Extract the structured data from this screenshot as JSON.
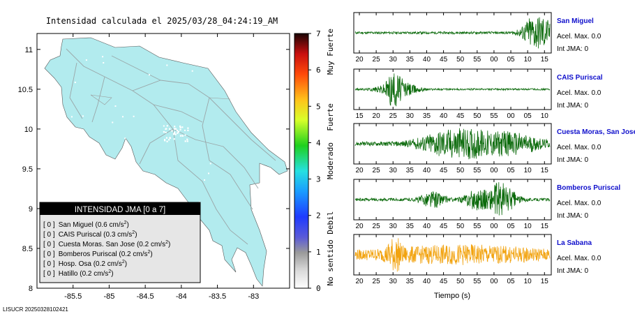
{
  "header": {
    "title": "Intensidad calculada el 2025/03/28_04:24:19_AM"
  },
  "footer": {
    "id": "LISUCR 20250328102421"
  },
  "map": {
    "xlim": [
      -86,
      -82.5
    ],
    "ylim": [
      8,
      11.2
    ],
    "xticks": [
      "-85.5",
      "-85",
      "-84.5",
      "-84",
      "-83.5",
      "-83"
    ],
    "xtick_values": [
      -85.5,
      -85,
      -84.5,
      -84,
      -83.5,
      -83
    ],
    "yticks": [
      "11",
      "10.5",
      "10",
      "9.5",
      "9",
      "8.5",
      "8"
    ],
    "ytick_values": [
      11,
      10.5,
      10,
      9.5,
      9,
      8.5,
      8
    ],
    "land_color": "#b2ebee"
  },
  "legend": {
    "title": "INTENSIDAD JMA [0 a 7]",
    "items": [
      {
        "value": "[ 0 ]",
        "label": "San Miguel (0.6 cm/s",
        "sup": "2",
        "end": ")"
      },
      {
        "value": "[ 0 ]",
        "label": "CAIS Puriscal (0.3 cm/s",
        "sup": "2",
        "end": ")"
      },
      {
        "value": "[ 0 ]",
        "label": "Cuesta Moras. San Jose (0.2 cm/s",
        "sup": "2",
        "end": ")"
      },
      {
        "value": "[ 0 ]",
        "label": "Bomberos Puriscal (0.2 cm/s",
        "sup": "2",
        "end": ")"
      },
      {
        "value": "[ 0 ]",
        "label": "Hosp. Osa (0.2 cm/s",
        "sup": "2",
        "end": ")"
      },
      {
        "value": "[ 0 ]",
        "label": "Hatillo (0.2 cm/s",
        "sup": "2",
        "end": ")"
      }
    ]
  },
  "colorbar": {
    "ticks": [
      "7",
      "6",
      "5",
      "4",
      "3",
      "2",
      "1",
      "0"
    ],
    "tick_values": [
      7,
      6,
      5,
      4,
      3,
      2,
      1,
      0
    ],
    "categories": [
      {
        "label": "Muy Fuerte",
        "center": 6.5
      },
      {
        "label": "Fuerte",
        "center": 4.7
      },
      {
        "label": "Moderado",
        "center": 3.5
      },
      {
        "label": "Debil",
        "center": 1.8
      },
      {
        "label": "No sentido",
        "center": 0.7
      }
    ]
  },
  "waveforms": {
    "xlabel": "Tiempo (s)",
    "trace_color": "#0b6a0b",
    "highlight_color": "#f2a30f",
    "stations": [
      {
        "name": "San Miguel",
        "acel": "Acel. Max. 0.0",
        "int": "Int JMA: 0",
        "ticks": [
          "20",
          "25",
          "30",
          "35",
          "40",
          "45",
          "50",
          "55",
          "00",
          "05",
          "10",
          "15"
        ],
        "first_tick": 20,
        "highlight": false,
        "bursts": [
          {
            "t": 0.92,
            "w": 0.06,
            "a": 0.95
          },
          {
            "t": 0.97,
            "w": 0.04,
            "a": 0.55
          }
        ],
        "noise": 0.07
      },
      {
        "name": "CAIS Puriscal",
        "acel": "Acel. Max. 0.0",
        "int": "Int JMA: 0",
        "ticks": [
          "15",
          "20",
          "25",
          "30",
          "35",
          "40",
          "45",
          "50",
          "55",
          "00",
          "05",
          "10"
        ],
        "first_tick": 15,
        "highlight": false,
        "bursts": [
          {
            "t": 0.22,
            "w": 0.09,
            "a": 0.5
          },
          {
            "t": 0.2,
            "w": 0.03,
            "a": 0.95
          }
        ],
        "noise": 0.05
      },
      {
        "name": "Cuesta Moras, San Jose",
        "acel": "Acel. Max. 0.0",
        "int": "Int JMA: 0",
        "ticks": [
          "20",
          "25",
          "30",
          "35",
          "40",
          "45",
          "50",
          "55",
          "00",
          "05",
          "10",
          "15"
        ],
        "first_tick": 20,
        "highlight": false,
        "bursts": [
          {
            "t": 0.42,
            "w": 0.12,
            "a": 0.35
          },
          {
            "t": 0.58,
            "w": 0.16,
            "a": 0.7
          },
          {
            "t": 0.82,
            "w": 0.14,
            "a": 0.5
          }
        ],
        "noise": 0.12
      },
      {
        "name": "Bomberos Puriscal",
        "acel": "Acel. Max. 0.0",
        "int": "Int JMA: 0",
        "ticks": [
          "20",
          "25",
          "30",
          "35",
          "40",
          "45",
          "50",
          "55",
          "00",
          "05",
          "10",
          "15"
        ],
        "first_tick": 20,
        "highlight": false,
        "bursts": [
          {
            "t": 0.4,
            "w": 0.06,
            "a": 0.45
          },
          {
            "t": 0.62,
            "w": 0.06,
            "a": 0.5
          },
          {
            "t": 0.75,
            "w": 0.07,
            "a": 0.95
          }
        ],
        "noise": 0.08
      },
      {
        "name": "La Sabana",
        "acel": "Acel. Max. 0.0",
        "int": "Int JMA: 0",
        "ticks": [
          "20",
          "25",
          "30",
          "35",
          "40",
          "45",
          "50",
          "55",
          "00",
          "05",
          "10",
          "15"
        ],
        "first_tick": 20,
        "highlight": true,
        "bursts": [
          {
            "t": 0.2,
            "w": 0.03,
            "a": 0.95
          },
          {
            "t": 0.55,
            "w": 0.4,
            "a": 0.35
          }
        ],
        "noise": 0.25
      }
    ]
  }
}
